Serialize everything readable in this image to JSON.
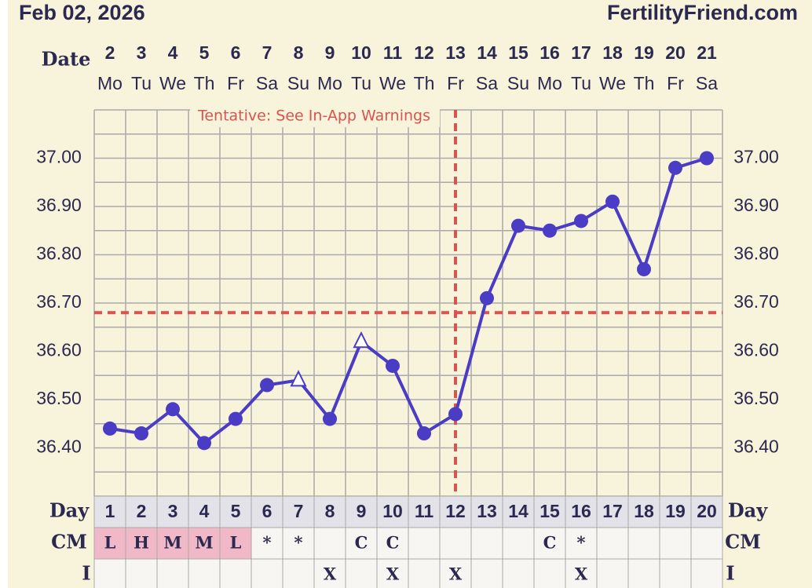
{
  "chart_data": {
    "type": "line",
    "date_label": "Feb 02, 2026",
    "site": "FertilityFriend.com",
    "annotation": "Tentative: See In-App Warnings",
    "row_labels": {
      "date": "Date",
      "day": "Day",
      "cm": "CM",
      "i": "I"
    },
    "dates": [
      2,
      3,
      4,
      5,
      6,
      7,
      8,
      9,
      10,
      11,
      12,
      13,
      14,
      15,
      16,
      17,
      18,
      19,
      20,
      21
    ],
    "weekdays": [
      "Mo",
      "Tu",
      "We",
      "Th",
      "Fr",
      "Sa",
      "Su",
      "Mo",
      "Tu",
      "We",
      "Th",
      "Fr",
      "Sa",
      "Su",
      "Mo",
      "Tu",
      "We",
      "Th",
      "Fr",
      "Sa"
    ],
    "categories": [
      1,
      2,
      3,
      4,
      5,
      6,
      7,
      8,
      9,
      10,
      11,
      12,
      13,
      14,
      15,
      16,
      17,
      18,
      19,
      20
    ],
    "series": [
      {
        "color": "#4b3cc6",
        "values": [
          36.44,
          36.43,
          36.48,
          36.41,
          36.46,
          36.53,
          36.54,
          36.46,
          36.62,
          36.57,
          36.43,
          36.47,
          36.71,
          36.86,
          36.85,
          36.87,
          36.91,
          36.77,
          36.98,
          37.0
        ],
        "markers": [
          "circle",
          "circle",
          "circle",
          "circle",
          "circle",
          "circle",
          "triangle",
          "circle",
          "triangle",
          "circle",
          "circle",
          "circle",
          "circle",
          "circle",
          "circle",
          "circle",
          "circle",
          "circle",
          "circle",
          "circle"
        ]
      }
    ],
    "coverline": 36.68,
    "ovulation_day": 12,
    "guide_color": "#d9534f",
    "ylim": [
      36.3,
      37.1
    ],
    "yticks": [
      {
        "value": 36.4,
        "label": "36.40"
      },
      {
        "value": 36.5,
        "label": "36.50"
      },
      {
        "value": 36.6,
        "label": "36.60"
      },
      {
        "value": 36.7,
        "label": "36.70"
      },
      {
        "value": 36.8,
        "label": "36.80"
      },
      {
        "value": 36.9,
        "label": "36.90"
      },
      {
        "value": 37.0,
        "label": "37.00"
      }
    ],
    "grid": true,
    "cm": [
      "L",
      "H",
      "M",
      "M",
      "L",
      "*",
      "*",
      null,
      "C",
      "C",
      null,
      null,
      null,
      null,
      "C",
      "*",
      null,
      null,
      null,
      null
    ],
    "cm_highlight": [
      true,
      true,
      true,
      true,
      true,
      false,
      false,
      false,
      false,
      false,
      false,
      false,
      false,
      false,
      false,
      false,
      false,
      false,
      false,
      false
    ],
    "intercourse": [
      null,
      null,
      null,
      null,
      null,
      null,
      null,
      "X",
      null,
      "X",
      null,
      "X",
      null,
      null,
      null,
      "X",
      null,
      null,
      null,
      null
    ]
  }
}
